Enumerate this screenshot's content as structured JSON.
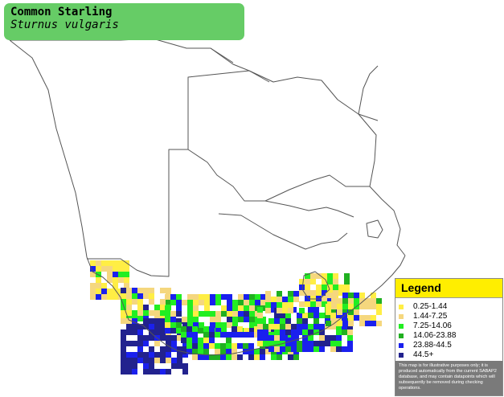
{
  "species": {
    "common_name": "Common Starling",
    "scientific_name": "Sturnus vulgaris"
  },
  "legend": {
    "title": "Legend",
    "items": [
      {
        "label": "0.25-1.44",
        "color": "#ffee44"
      },
      {
        "label": "1.44-7.25",
        "color": "#f5d77e"
      },
      {
        "label": "7.25-14.06",
        "color": "#22ee22"
      },
      {
        "label": "14.06-23.88",
        "color": "#20b020"
      },
      {
        "label": "23.88-44.5",
        "color": "#1a20ee"
      },
      {
        "label": "44.5+",
        "color": "#22228e"
      }
    ],
    "note": "This map is for illustrative purposes only; it is produced automatically from the current SABAP2 database, and may contain datapoints which will subsequently be removed during checking operations."
  },
  "colors": {
    "title_box": "#66cc66",
    "border_lines": "#555555",
    "land": "#ffffff"
  }
}
